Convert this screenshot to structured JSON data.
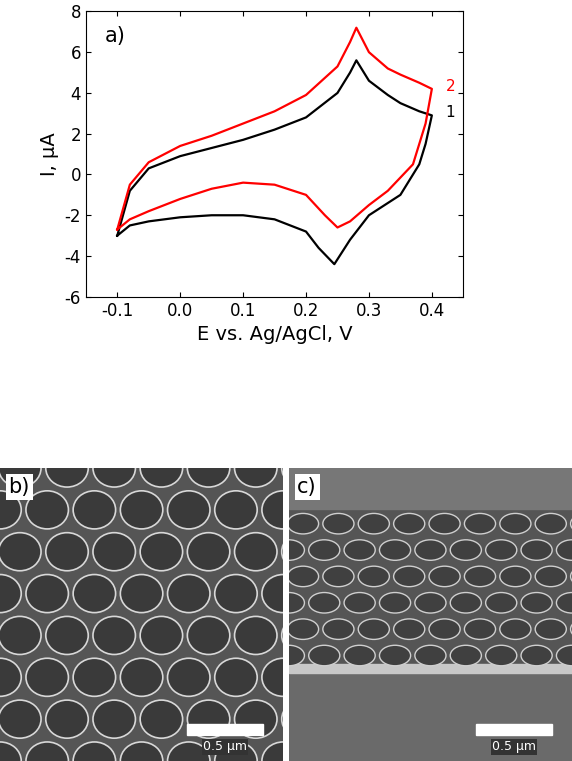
{
  "chart_data": {
    "type": "line",
    "panel_label": "a)",
    "x_label": "E vs. Ag/AgCl, V",
    "y_label": "I, μA",
    "xlim": [
      -0.15,
      0.45
    ],
    "xticks": [
      -0.1,
      0.0,
      0.1,
      0.2,
      0.3,
      0.4
    ],
    "ylim": [
      -6,
      8
    ],
    "yticks": [
      -6,
      -4,
      -2,
      0,
      2,
      4,
      6,
      8
    ],
    "series": [
      {
        "name": "1",
        "color": "#000000",
        "x": [
          -0.1,
          -0.08,
          -0.05,
          0.0,
          0.05,
          0.1,
          0.15,
          0.2,
          0.25,
          0.27,
          0.28,
          0.3,
          0.33,
          0.35,
          0.38,
          0.4,
          0.39,
          0.38,
          0.35,
          0.3,
          0.27,
          0.245,
          0.22,
          0.2,
          0.15,
          0.1,
          0.05,
          0.0,
          -0.05,
          -0.08,
          -0.1
        ],
        "values": [
          -3.0,
          -0.8,
          0.3,
          0.9,
          1.3,
          1.7,
          2.2,
          2.8,
          4.0,
          5.0,
          5.6,
          4.6,
          3.9,
          3.5,
          3.1,
          2.9,
          1.5,
          0.5,
          -1.0,
          -2.0,
          -3.2,
          -4.4,
          -3.6,
          -2.8,
          -2.2,
          -2.0,
          -2.0,
          -2.1,
          -2.3,
          -2.5,
          -3.0
        ]
      },
      {
        "name": "2",
        "color": "#ff0000",
        "x": [
          -0.1,
          -0.08,
          -0.05,
          0.0,
          0.05,
          0.1,
          0.15,
          0.2,
          0.25,
          0.27,
          0.28,
          0.3,
          0.33,
          0.35,
          0.38,
          0.4,
          0.39,
          0.37,
          0.33,
          0.3,
          0.27,
          0.25,
          0.23,
          0.2,
          0.15,
          0.1,
          0.05,
          0.0,
          -0.05,
          -0.08,
          -0.1
        ],
        "values": [
          -2.7,
          -0.5,
          0.6,
          1.4,
          1.9,
          2.5,
          3.1,
          3.9,
          5.3,
          6.5,
          7.2,
          6.0,
          5.2,
          4.9,
          4.5,
          4.2,
          2.5,
          0.5,
          -0.8,
          -1.5,
          -2.3,
          -2.6,
          -2.0,
          -1.0,
          -0.5,
          -0.4,
          -0.7,
          -1.2,
          -1.8,
          -2.2,
          -2.7
        ]
      }
    ]
  },
  "images": [
    {
      "panel_label": "b)",
      "scale_bar_label": "0.5 µm"
    },
    {
      "panel_label": "c)",
      "scale_bar_label": "0.5 µm"
    }
  ]
}
